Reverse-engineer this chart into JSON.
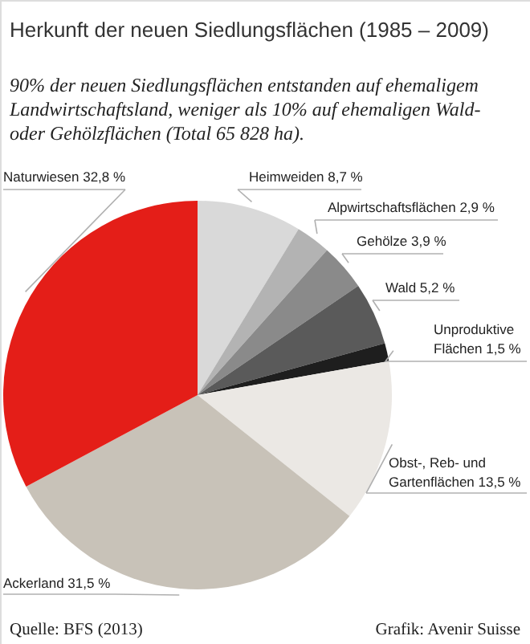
{
  "chart_data": {
    "type": "pie",
    "title": "Herkunft der neuen Siedlungsflächen (1985 – 2009)",
    "subtitle": "90% der neuen Siedlungsflächen entstanden auf ehemaligem Landwirtschaftsland, weniger als 10% auf ehemaligen Wald- oder Gehölzflächen (Total 65 828 ha).",
    "categories": [
      "Heimweiden",
      "Alpwirtschaftsflächen",
      "Gehölze",
      "Wald",
      "Unproduktive Flächen",
      "Obst-, Reb- und Gartenflächen",
      "Ackerland",
      "Naturwiesen"
    ],
    "values": [
      8.7,
      2.9,
      3.9,
      5.2,
      1.5,
      13.5,
      31.5,
      32.8
    ],
    "value_labels": [
      "8,7 %",
      "2,9 %",
      "3,9 %",
      "5,2 %",
      "1,5 %",
      "13,5 %",
      "31,5 %",
      "32,8 %"
    ],
    "colors": [
      "#d9d9d9",
      "#b3b3b3",
      "#8a8a8a",
      "#5a5a5a",
      "#1e1e1e",
      "#ebe8e4",
      "#c8c2b8",
      "#e41e18"
    ],
    "annotations": [
      "Quelle: BFS (2013)",
      "Grafik: Avenir Suisse"
    ]
  }
}
